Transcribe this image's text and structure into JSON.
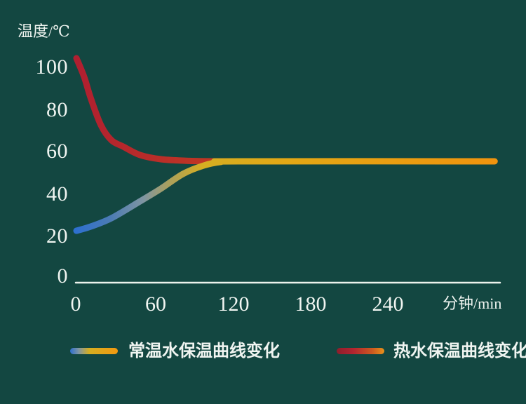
{
  "ui": {
    "background_color": "#134741",
    "text_color": "#f0f5f1",
    "axis_line_color": "#ecf2ec"
  },
  "chart_data": {
    "type": "line",
    "title": "",
    "ylabel": "温度/℃",
    "xlabel": "分钟/min",
    "yticks": [
      "100",
      "80",
      "60",
      "40",
      "20",
      "0"
    ],
    "xticks": [
      "0",
      "60",
      "120",
      "180",
      "240"
    ],
    "ylim": [
      0,
      110
    ],
    "xlim": [
      0,
      326
    ],
    "grid": false,
    "legend_position": "bottom",
    "series": [
      {
        "name": "常温水保温曲线变化",
        "description": "room-temperature water warming to ambient ~55C",
        "colors": [
          "#2e70cf",
          "#4b7bb4",
          "#7f95a2",
          "#aaa05e",
          "#d5ae22",
          "#e3a815",
          "#f0940e"
        ],
        "points": [
          [
            0,
            22
          ],
          [
            11,
            24
          ],
          [
            27,
            28
          ],
          [
            49,
            36
          ],
          [
            65,
            42
          ],
          [
            82,
            49
          ],
          [
            98,
            53
          ],
          [
            111,
            54.7
          ],
          [
            125,
            55
          ],
          [
            322,
            55
          ]
        ]
      },
      {
        "name": "热水保温曲线变化",
        "description": "hot water cooling to ambient ~55C",
        "colors": [
          "#b01f30",
          "#c23b22"
        ],
        "points": [
          [
            0,
            104
          ],
          [
            6,
            95
          ],
          [
            11,
            85
          ],
          [
            19,
            72
          ],
          [
            27,
            65
          ],
          [
            36,
            62
          ],
          [
            49,
            58
          ],
          [
            65,
            56
          ],
          [
            87,
            55.2
          ],
          [
            110,
            55
          ],
          [
            120,
            55
          ]
        ]
      }
    ],
    "legend": [
      {
        "label": "常温水保温曲线变化",
        "swatch_colors": [
          "#2e70cf",
          "#7f95a2",
          "#d5ae22",
          "#f2990f"
        ]
      },
      {
        "label": "热水保温曲线变化",
        "swatch_colors": [
          "#8e1e2c",
          "#b22430",
          "#cc5a20",
          "#e9921a"
        ]
      }
    ]
  }
}
